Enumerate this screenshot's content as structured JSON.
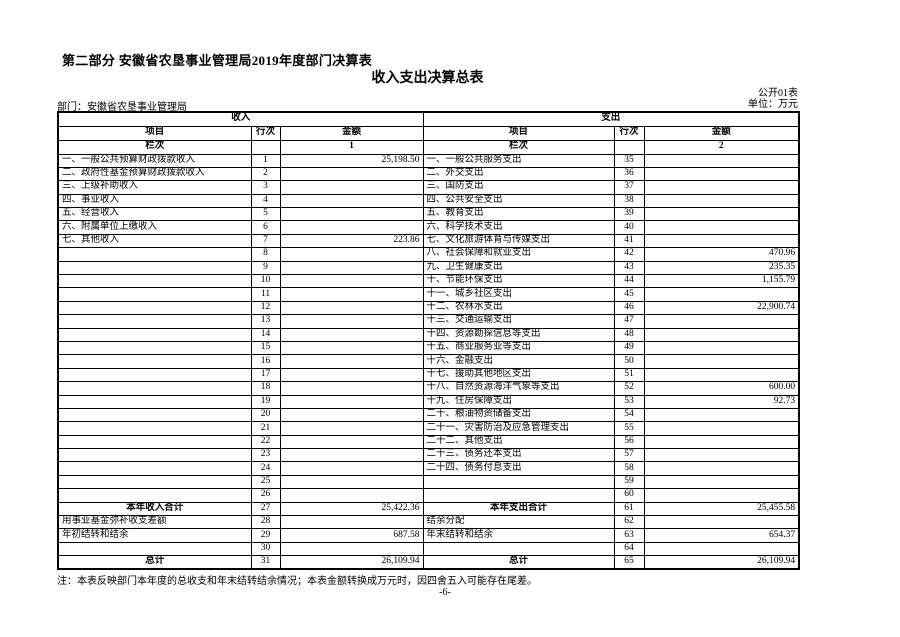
{
  "page": {
    "section_title": "第二部分  安徽省农垦事业管理局2019年度部门决算表",
    "table_title": "收入支出决算总表",
    "form_code": "公开01表",
    "department": "部门：安徽省农垦事业管理局",
    "unit": "单位：万元",
    "note": "注：本表反映部门本年度的总收支和年末结转结余情况；本表金额转换成万元时，因四舍五入可能存在尾差。",
    "page_number": "-6-"
  },
  "table": {
    "income_group_header": "收入",
    "expense_group_header": "支出",
    "column_headers": {
      "item": "项目",
      "line_no": "行次",
      "amount": "金额"
    },
    "lanci_label": "栏次",
    "income_col_index": "1",
    "expense_col_index": "2",
    "rows": [
      {
        "i_item": "一、一般公共预算财政拨款收入",
        "i_line": "1",
        "i_amt": "25,198.50",
        "e_item": "一、一般公共服务支出",
        "e_line": "35",
        "e_amt": ""
      },
      {
        "i_item": "二、政府性基金预算财政拨款收入",
        "i_line": "2",
        "i_amt": "",
        "e_item": "二、外交支出",
        "e_line": "36",
        "e_amt": ""
      },
      {
        "i_item": "三、上级补助收入",
        "i_line": "3",
        "i_amt": "",
        "e_item": "三、国防支出",
        "e_line": "37",
        "e_amt": ""
      },
      {
        "i_item": "四、事业收入",
        "i_line": "4",
        "i_amt": "",
        "e_item": "四、公共安全支出",
        "e_line": "38",
        "e_amt": ""
      },
      {
        "i_item": "五、经营收入",
        "i_line": "5",
        "i_amt": "",
        "e_item": "五、教育支出",
        "e_line": "39",
        "e_amt": ""
      },
      {
        "i_item": "六、附属单位上缴收入",
        "i_line": "6",
        "i_amt": "",
        "e_item": "六、科学技术支出",
        "e_line": "40",
        "e_amt": ""
      },
      {
        "i_item": "七、其他收入",
        "i_line": "7",
        "i_amt": "223.86",
        "e_item": "七、文化旅游体育与传媒支出",
        "e_line": "41",
        "e_amt": ""
      },
      {
        "i_item": "",
        "i_line": "8",
        "i_amt": "",
        "e_item": "八、社会保障和就业支出",
        "e_line": "42",
        "e_amt": "470.96"
      },
      {
        "i_item": "",
        "i_line": "9",
        "i_amt": "",
        "e_item": "九、卫生健康支出",
        "e_line": "43",
        "e_amt": "235.35"
      },
      {
        "i_item": "",
        "i_line": "10",
        "i_amt": "",
        "e_item": "十、节能环保支出",
        "e_line": "44",
        "e_amt": "1,155.79"
      },
      {
        "i_item": "",
        "i_line": "11",
        "i_amt": "",
        "e_item": "十一、城乡社区支出",
        "e_line": "45",
        "e_amt": ""
      },
      {
        "i_item": "",
        "i_line": "12",
        "i_amt": "",
        "e_item": "十二、农林水支出",
        "e_line": "46",
        "e_amt": "22,900.74"
      },
      {
        "i_item": "",
        "i_line": "13",
        "i_amt": "",
        "e_item": "十三、交通运输支出",
        "e_line": "47",
        "e_amt": ""
      },
      {
        "i_item": "",
        "i_line": "14",
        "i_amt": "",
        "e_item": "十四、资源勘探信息等支出",
        "e_line": "48",
        "e_amt": ""
      },
      {
        "i_item": "",
        "i_line": "15",
        "i_amt": "",
        "e_item": "十五、商业服务业等支出",
        "e_line": "49",
        "e_amt": ""
      },
      {
        "i_item": "",
        "i_line": "16",
        "i_amt": "",
        "e_item": "十六、金融支出",
        "e_line": "50",
        "e_amt": ""
      },
      {
        "i_item": "",
        "i_line": "17",
        "i_amt": "",
        "e_item": "十七、援助其他地区支出",
        "e_line": "51",
        "e_amt": ""
      },
      {
        "i_item": "",
        "i_line": "18",
        "i_amt": "",
        "e_item": "十八、自然资源海洋气象等支出",
        "e_line": "52",
        "e_amt": "600.00"
      },
      {
        "i_item": "",
        "i_line": "19",
        "i_amt": "",
        "e_item": "十九、住房保障支出",
        "e_line": "53",
        "e_amt": "92.73"
      },
      {
        "i_item": "",
        "i_line": "20",
        "i_amt": "",
        "e_item": "二十、粮油物资储备支出",
        "e_line": "54",
        "e_amt": ""
      },
      {
        "i_item": "",
        "i_line": "21",
        "i_amt": "",
        "e_item": "二十一、灾害防治及应急管理支出",
        "e_line": "55",
        "e_amt": ""
      },
      {
        "i_item": "",
        "i_line": "22",
        "i_amt": "",
        "e_item": "二十二、其他支出",
        "e_line": "56",
        "e_amt": ""
      },
      {
        "i_item": "",
        "i_line": "23",
        "i_amt": "",
        "e_item": "二十三、债务还本支出",
        "e_line": "57",
        "e_amt": ""
      },
      {
        "i_item": "",
        "i_line": "24",
        "i_amt": "",
        "e_item": "二十四、债务付息支出",
        "e_line": "58",
        "e_amt": ""
      },
      {
        "i_item": "",
        "i_line": "25",
        "i_amt": "",
        "e_item": "",
        "e_line": "59",
        "e_amt": ""
      },
      {
        "i_item": "",
        "i_line": "26",
        "i_amt": "",
        "e_item": "",
        "e_line": "60",
        "e_amt": ""
      },
      {
        "i_item": "本年收入合计",
        "i_sum": true,
        "i_line": "27",
        "i_amt": "25,422.36",
        "e_item": "本年支出合计",
        "e_sum": true,
        "e_line": "61",
        "e_amt": "25,455.58"
      },
      {
        "i_item": "用事业基金弥补收支差额",
        "i_line": "28",
        "i_amt": "",
        "e_item": "结余分配",
        "e_line": "62",
        "e_amt": ""
      },
      {
        "i_item": "年初结转和结余",
        "i_line": "29",
        "i_amt": "687.58",
        "e_item": "年末结转和结余",
        "e_line": "63",
        "e_amt": "654.37"
      },
      {
        "i_item": "",
        "i_line": "30",
        "i_amt": "",
        "e_item": "",
        "e_line": "64",
        "e_amt": ""
      },
      {
        "i_item": "总计",
        "i_sum": true,
        "i_line": "31",
        "i_amt": "26,109.94",
        "e_item": "总计",
        "e_sum": true,
        "e_line": "65",
        "e_amt": "26,109.94"
      }
    ]
  }
}
